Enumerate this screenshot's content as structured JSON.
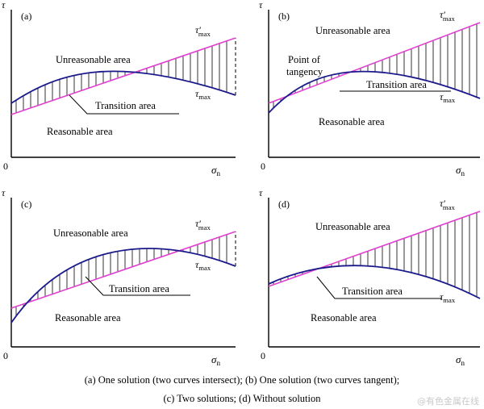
{
  "panels": [
    {
      "id": "a",
      "tag": "(a)",
      "y_axis": "τ",
      "x_axis": "σ",
      "x_sub": "n",
      "origin": "0",
      "tau_prime": "τ′",
      "tau_prime_sub": "max",
      "tau": "τ",
      "tau_sub": "max",
      "unreasonable": "Unreasonable area",
      "reasonable": "Reasonable area",
      "transition": "Transition area"
    },
    {
      "id": "b",
      "tag": "(b)",
      "y_axis": "τ",
      "x_axis": "σ",
      "x_sub": "n",
      "origin": "0",
      "tau_prime": "τ′",
      "tau_prime_sub": "max",
      "tau": "τ",
      "tau_sub": "max",
      "unreasonable": "Unreasonable area",
      "reasonable": "Reasonable area",
      "transition": "Transition area",
      "tangency_1": "Point of",
      "tangency_2": "tangency"
    },
    {
      "id": "c",
      "tag": "(c)",
      "y_axis": "τ",
      "x_axis": "σ",
      "x_sub": "n",
      "origin": "0",
      "tau_prime": "τ′",
      "tau_prime_sub": "max",
      "tau": "τ",
      "tau_sub": "max",
      "unreasonable": "Unreasonable area",
      "reasonable": "Reasonable area",
      "transition": "Transition area"
    },
    {
      "id": "d",
      "tag": "(d)",
      "y_axis": "τ",
      "x_axis": "σ",
      "x_sub": "n",
      "origin": "0",
      "tau_prime": "τ′",
      "tau_prime_sub": "max",
      "tau": "τ",
      "tau_sub": "max",
      "unreasonable": "Unreasonable area",
      "reasonable": "Reasonable area",
      "transition": "Transition area"
    }
  ],
  "caption": {
    "line1": "(a)  One solution (two curves intersect); (b) One solution (two curves tangent);",
    "line2": "(c) Two solutions; (d) Without solution"
  },
  "watermark": "@有色金属在线",
  "colors": {
    "line": "#e040d0",
    "curve": "#1a1a8c",
    "hatch": "#000000",
    "axis": "#000000"
  }
}
